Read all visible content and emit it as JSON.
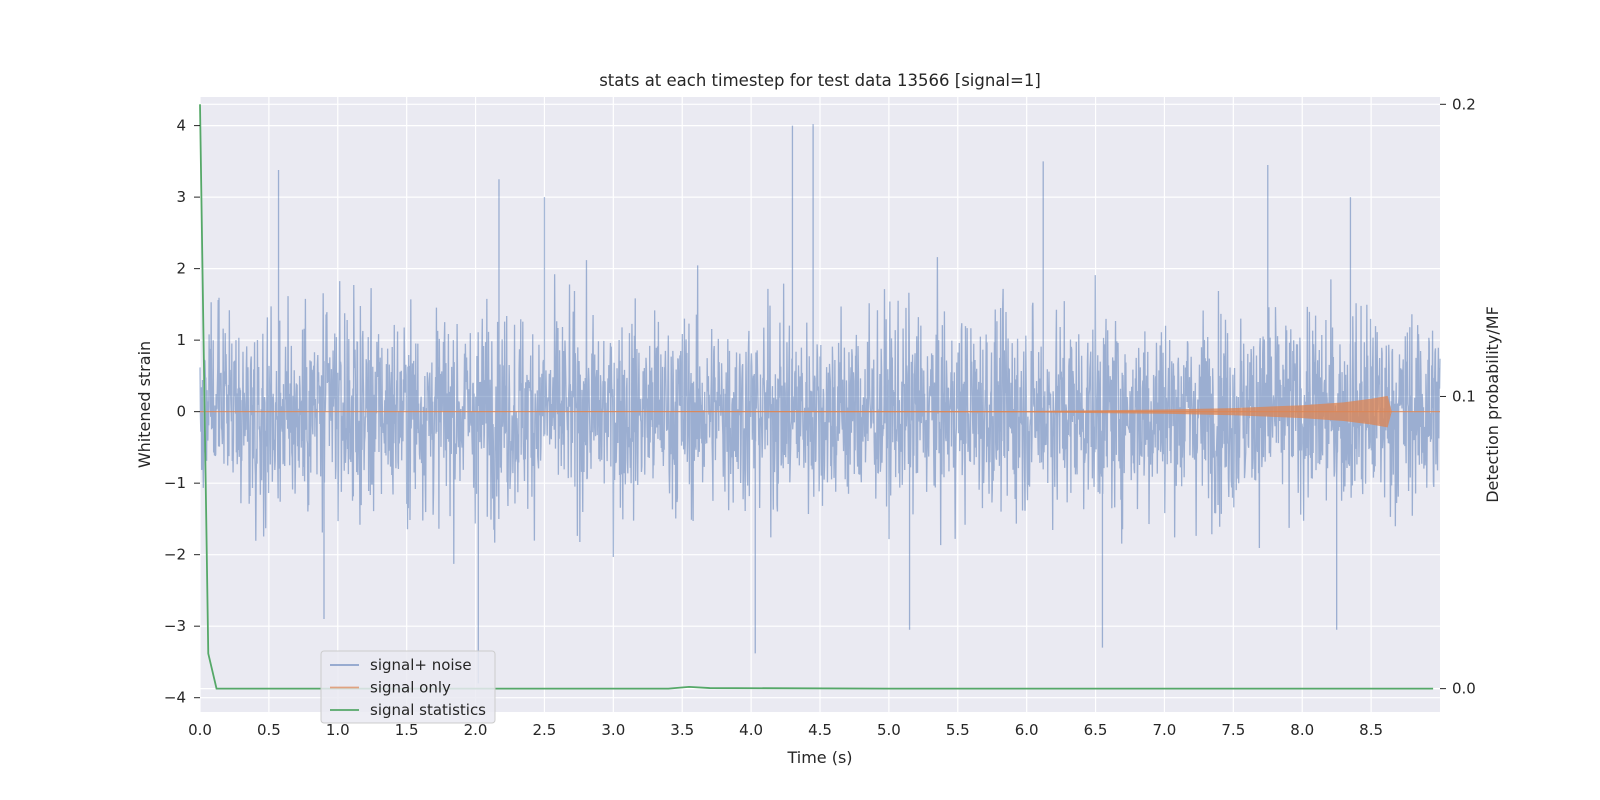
{
  "chart_data": {
    "type": "line",
    "title": "stats at each timestep for test data 13566 [signal=1]",
    "xlabel": "Time (s)",
    "ylabel": "Whitened strain",
    "y2label": "Detection probability/MF",
    "xlim": [
      0.0,
      9.0
    ],
    "ylim": [
      -4.2,
      4.4
    ],
    "y2lim": [
      -0.008,
      0.2025
    ],
    "xticks": [
      "0.0",
      "0.5",
      "1.0",
      "1.5",
      "2.0",
      "2.5",
      "3.0",
      "3.5",
      "4.0",
      "4.5",
      "5.0",
      "5.5",
      "6.0",
      "6.5",
      "7.0",
      "7.5",
      "8.0",
      "8.5"
    ],
    "yticks": [
      "4",
      "3",
      "2",
      "1",
      "0",
      "−1",
      "−2",
      "−3",
      "−4"
    ],
    "y2ticks": [
      "0.2",
      "0.1",
      "0.0"
    ],
    "grid": true,
    "legend": "lower-left",
    "colors": {
      "signal_noise": "#4c72b0",
      "signal_only": "#dd8452",
      "signal_statistics": "#55a868",
      "plot_bg": "#eaeaf2",
      "grid": "#ffffff"
    },
    "series": [
      {
        "name": "signal+ noise",
        "axis": "left",
        "description_stats": {
          "amplitude_envelope": [
            -3.8,
            4.0
          ]
        },
        "peaks": [
          {
            "x": 0.57,
            "y": 3.38
          },
          {
            "x": 2.17,
            "y": 3.25
          },
          {
            "x": 2.5,
            "y": 3.0
          },
          {
            "x": 4.3,
            "y": 4.0
          },
          {
            "x": 4.45,
            "y": 4.02
          },
          {
            "x": 6.12,
            "y": 3.5
          },
          {
            "x": 7.75,
            "y": 3.45
          },
          {
            "x": 8.35,
            "y": 3.0
          },
          {
            "x": 2.02,
            "y": -3.8
          },
          {
            "x": 4.03,
            "y": -3.38
          },
          {
            "x": 6.55,
            "y": -3.3
          },
          {
            "x": 0.9,
            "y": -2.9
          },
          {
            "x": 5.15,
            "y": -3.05
          },
          {
            "x": 8.25,
            "y": -3.05
          }
        ]
      },
      {
        "name": "signal only",
        "axis": "left",
        "x": [
          0.0,
          6.0,
          7.0,
          7.5,
          8.0,
          8.3,
          8.5,
          8.62,
          8.65,
          9.0
        ],
        "envelope": [
          0.0,
          0.01,
          0.03,
          0.05,
          0.09,
          0.13,
          0.18,
          0.22,
          0.0,
          0.0
        ]
      },
      {
        "name": "signal statistics",
        "axis": "right",
        "x": [
          0.0,
          0.06,
          0.12,
          0.5,
          3.0,
          3.4,
          3.55,
          3.7,
          5.0,
          8.95
        ],
        "values": [
          0.2,
          0.012,
          0.0,
          0.0,
          0.0,
          0.0,
          0.0006,
          0.0002,
          0.0,
          0.0
        ]
      }
    ]
  }
}
